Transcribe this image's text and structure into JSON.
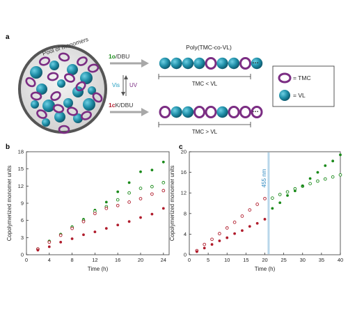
{
  "panel_a": {
    "letter": "a",
    "pool_label": "Pool of monomers",
    "top_catalyst": {
      "prefix": "1",
      "state": "o",
      "suffix": "/DBU"
    },
    "bottom_catalyst": {
      "prefix": "1",
      "state": "c",
      "suffix": "K/DBU"
    },
    "switch_vis": "Vis",
    "switch_uv": "UV",
    "polymer_title": "Poly(TMC-co-VL)",
    "top_relation": "TMC < VL",
    "bottom_relation": "TMC > VL",
    "legend": {
      "tmc": "= TMC",
      "vl": "= VL"
    },
    "colors": {
      "tmc": "#7b2d83",
      "vl": "#1f8fa8",
      "arrow": "#a8a8a8",
      "green": "#1a8a1a",
      "red": "#b01c2c"
    }
  },
  "chart_data": [
    {
      "panel": "b",
      "type": "scatter",
      "xlabel": "Time (h)",
      "ylabel": "Copolymerized monomer units",
      "xlim": [
        0,
        25
      ],
      "ylim": [
        0,
        18
      ],
      "xticks": [
        0,
        4,
        8,
        12,
        16,
        20,
        24
      ],
      "yticks": [
        0,
        3,
        6,
        9,
        12,
        15,
        18
      ],
      "series": [
        {
          "marker": "filled",
          "color": "#1a8a1a",
          "x": [
            2,
            4,
            6,
            8,
            10,
            12,
            14,
            16,
            18,
            20,
            22,
            24
          ],
          "y": [
            1.0,
            2.4,
            3.6,
            4.9,
            6.2,
            7.8,
            9.2,
            11.0,
            12.6,
            14.5,
            14.8,
            16.2
          ]
        },
        {
          "marker": "open",
          "color": "#1a8a1a",
          "x": [
            2,
            4,
            6,
            8,
            10,
            12,
            14,
            16,
            18,
            20,
            22,
            24
          ],
          "y": [
            1.0,
            2.3,
            3.5,
            4.8,
            6.0,
            7.6,
            8.4,
            9.6,
            10.8,
            11.6,
            11.9,
            12.6
          ]
        },
        {
          "marker": "open",
          "color": "#b01c2c",
          "x": [
            2,
            4,
            6,
            8,
            10,
            12,
            14,
            16,
            18,
            20,
            22,
            24
          ],
          "y": [
            1.0,
            2.2,
            3.4,
            4.6,
            5.8,
            7.2,
            8.1,
            8.6,
            9.2,
            9.8,
            10.6,
            11.2
          ]
        },
        {
          "marker": "filled",
          "color": "#b01c2c",
          "x": [
            2,
            4,
            6,
            8,
            10,
            12,
            14,
            16,
            18,
            20,
            22,
            24
          ],
          "y": [
            0.8,
            1.4,
            2.2,
            2.8,
            3.5,
            4.0,
            4.6,
            5.2,
            5.8,
            6.5,
            7.1,
            8.1
          ]
        }
      ]
    },
    {
      "panel": "c",
      "type": "scatter",
      "xlabel": "Time (h)",
      "ylabel": "Copolymerized monomer units",
      "xlim": [
        0,
        40
      ],
      "ylim": [
        0,
        20
      ],
      "xticks": [
        0,
        5,
        10,
        15,
        20,
        25,
        30,
        35,
        40
      ],
      "yticks": [
        0,
        4,
        8,
        12,
        16,
        20
      ],
      "annotation": {
        "x": 21,
        "label": "455 nm",
        "color": "#7fb6d8"
      },
      "series": [
        {
          "marker": "open",
          "color": "#b01c2c",
          "x": [
            2,
            4,
            6,
            8,
            10,
            12,
            14,
            16,
            18,
            20
          ],
          "y": [
            0.8,
            2.0,
            3.0,
            4.1,
            5.2,
            6.3,
            7.5,
            8.7,
            9.8,
            10.9
          ]
        },
        {
          "marker": "filled",
          "color": "#b01c2c",
          "x": [
            2,
            4,
            6,
            8,
            10,
            12,
            14,
            16,
            18,
            20
          ],
          "y": [
            0.6,
            1.3,
            2.0,
            2.7,
            3.3,
            4.1,
            4.7,
            5.5,
            6.1,
            6.9
          ]
        },
        {
          "marker": "open",
          "color": "#1a8a1a",
          "x": [
            22,
            24,
            26,
            28,
            30,
            32,
            34,
            36,
            38,
            40
          ],
          "y": [
            11.0,
            11.7,
            12.2,
            12.8,
            13.3,
            13.8,
            14.3,
            14.7,
            15.1,
            15.5
          ]
        },
        {
          "marker": "filled",
          "color": "#1a8a1a",
          "x": [
            22,
            24,
            26,
            28,
            30,
            32,
            34,
            36,
            38,
            40
          ],
          "y": [
            9.0,
            10.1,
            11.5,
            12.4,
            13.4,
            14.8,
            16.0,
            17.3,
            18.2,
            19.4
          ]
        }
      ]
    }
  ]
}
